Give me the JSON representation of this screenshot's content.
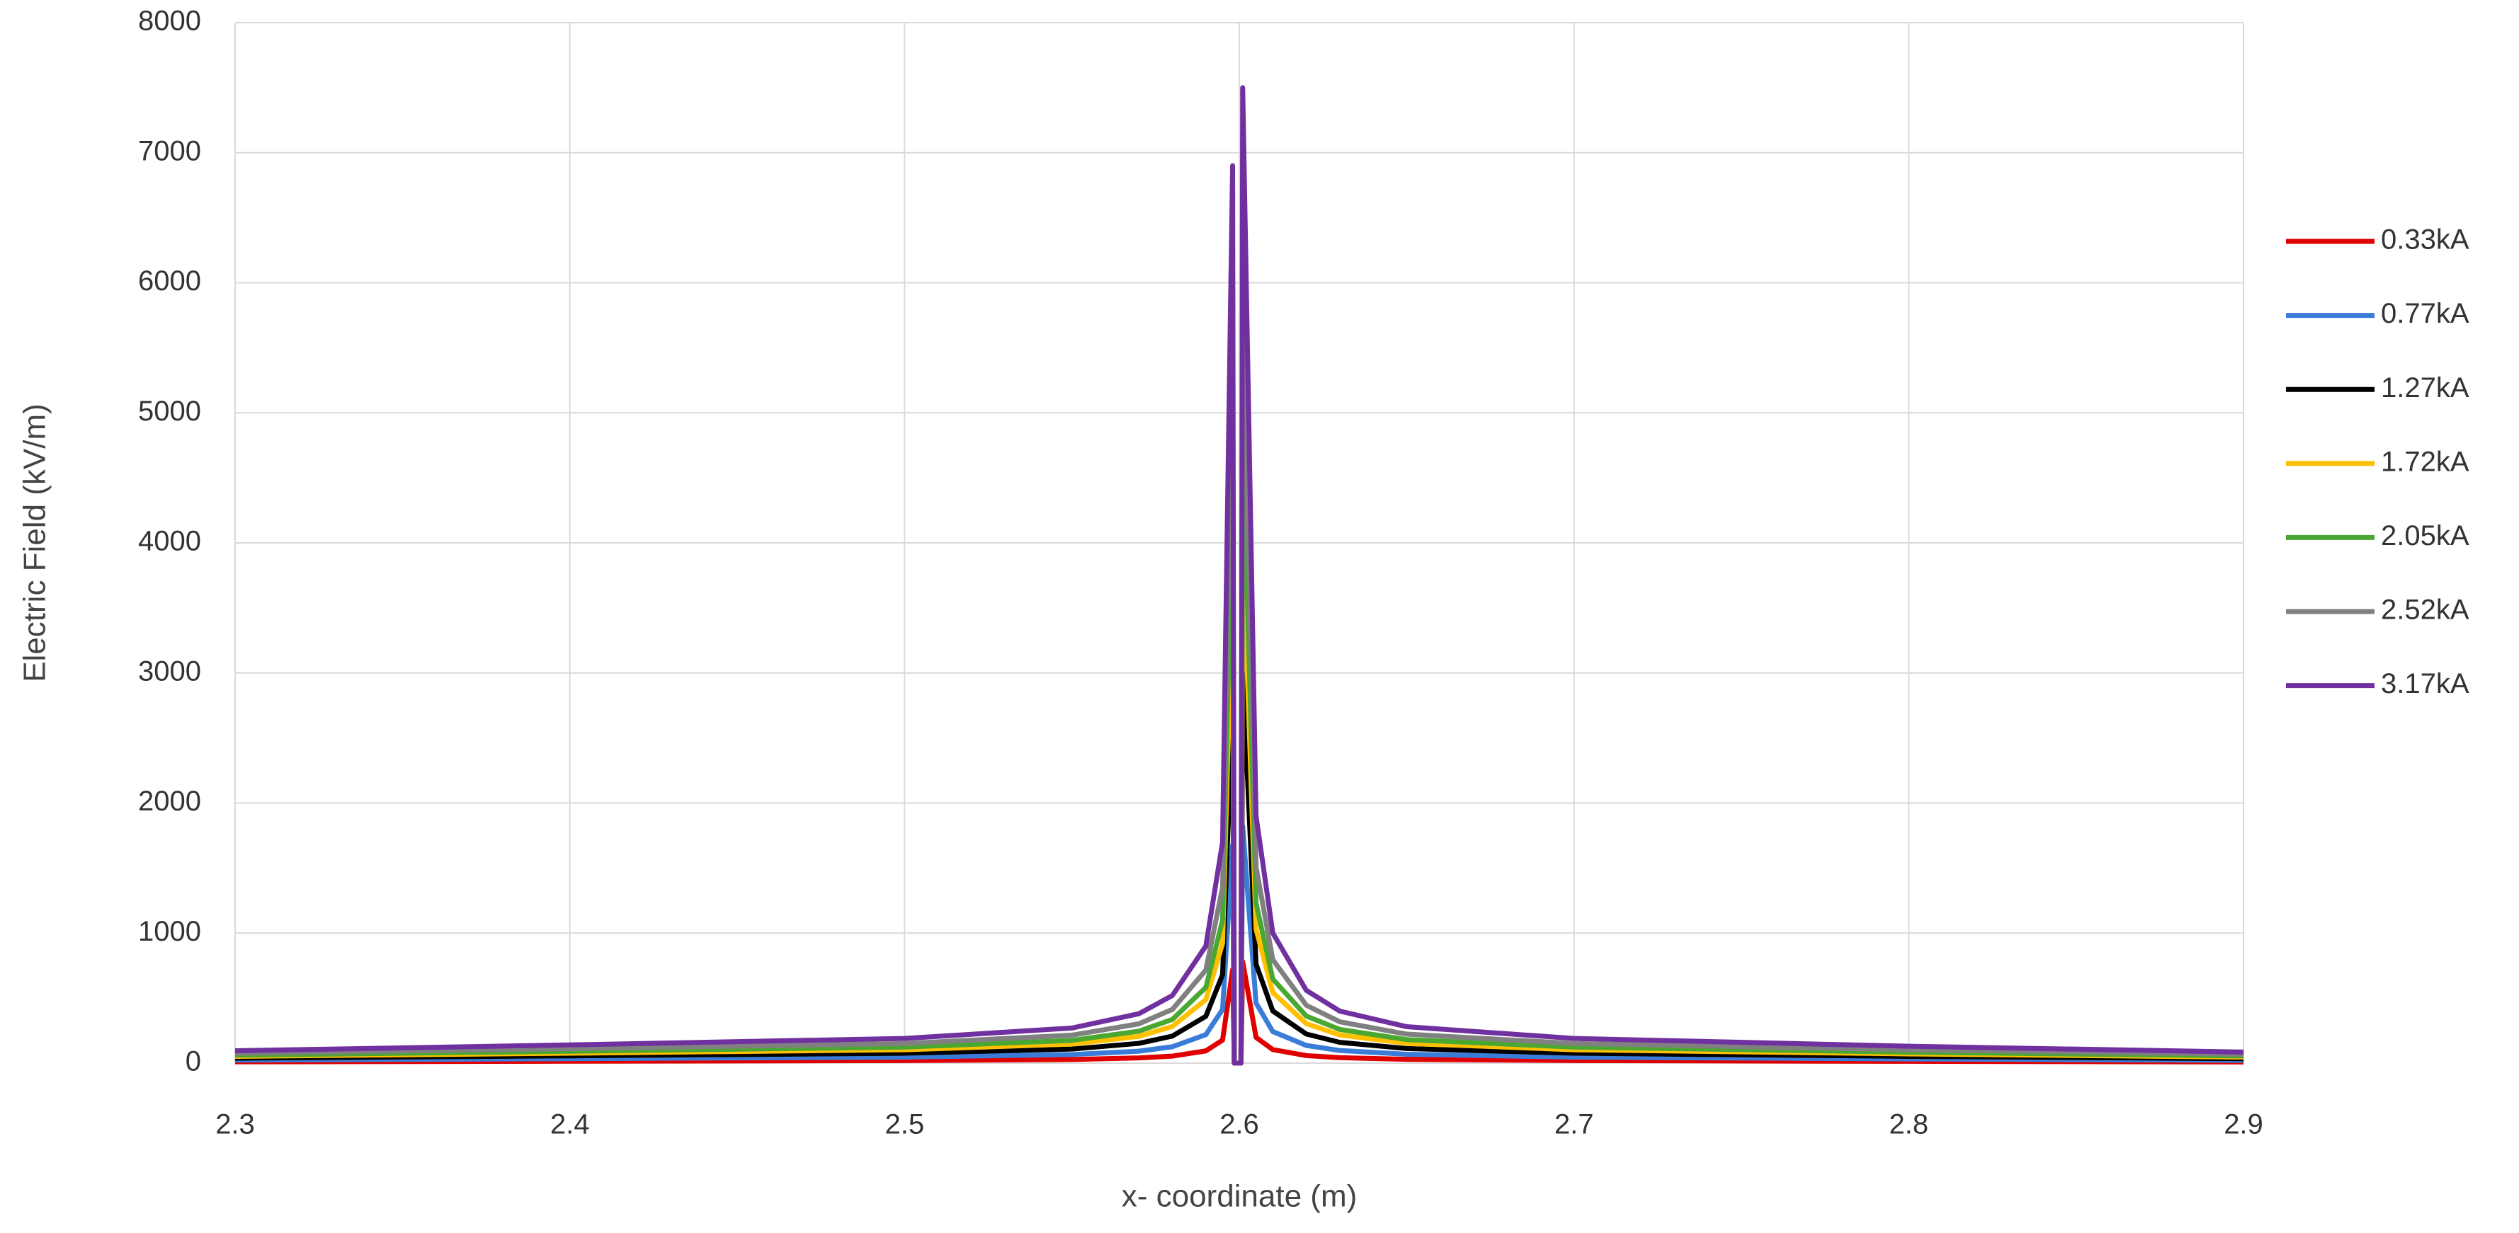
{
  "chart_data": {
    "type": "line",
    "x_label": "x- coordinate (m)",
    "y_label": "Electric Field (kV/m)",
    "xlim": [
      2.3,
      2.9
    ],
    "xticks": [
      2.3,
      2.4,
      2.5,
      2.6,
      2.7,
      2.8,
      2.9
    ],
    "ylim": [
      0,
      8000
    ],
    "yticks": [
      0,
      1000,
      2000,
      3000,
      4000,
      5000,
      6000,
      7000,
      8000
    ],
    "grid": true,
    "legend": "right",
    "x": [
      2.3,
      2.4,
      2.5,
      2.55,
      2.57,
      2.58,
      2.59,
      2.595,
      2.598,
      2.5985,
      2.6005,
      2.601,
      2.605,
      2.61,
      2.62,
      2.63,
      2.65,
      2.7,
      2.8,
      2.9
    ],
    "series": [
      {
        "name": "0.33kA",
        "color": "#e00000",
        "values": [
          10,
          15,
          20,
          28,
          40,
          54,
          94,
          177,
          718,
          0,
          0,
          781,
          198,
          104,
          58,
          42,
          29,
          20,
          14,
          9
        ]
      },
      {
        "name": "0.77kA",
        "color": "#3a7dd8",
        "values": [
          23,
          34,
          46,
          66,
          92,
          126,
          219,
          413,
          1676,
          0,
          0,
          1822,
          462,
          243,
          136,
          97,
          68,
          46,
          32,
          21
        ]
      },
      {
        "name": "1.27kA",
        "color": "#000000",
        "values": [
          38,
          56,
          76,
          108,
          152,
          208,
          360,
          680,
          2764,
          0,
          0,
          3005,
          761,
          401,
          224,
          160,
          112,
          76,
          52,
          34
        ]
      },
      {
        "name": "1.72kA",
        "color": "#ffc000",
        "values": [
          52,
          76,
          103,
          147,
          206,
          282,
          488,
          922,
          3744,
          0,
          0,
          4069,
          1031,
          543,
          304,
          217,
          152,
          103,
          71,
          46
        ]
      },
      {
        "name": "2.05kA",
        "color": "#4aa832",
        "values": [
          61,
          91,
          123,
          175,
          246,
          336,
          582,
          1099,
          4462,
          0,
          0,
          4850,
          1229,
          647,
          362,
          259,
          181,
          123,
          84,
          55
        ]
      },
      {
        "name": "2.52kA",
        "color": "#808080",
        "values": [
          76,
          111,
          151,
          215,
          302,
          413,
          715,
          1351,
          5485,
          0,
          0,
          5962,
          1510,
          795,
          445,
          318,
          223,
          151,
          103,
          68
        ]
      },
      {
        "name": "3.17kA",
        "color": "#7030a0",
        "values": [
          95,
          140,
          190,
          270,
          380,
          520,
          900,
          1700,
          6900,
          0,
          0,
          7500,
          1900,
          1000,
          560,
          400,
          280,
          190,
          130,
          85
        ]
      }
    ]
  }
}
